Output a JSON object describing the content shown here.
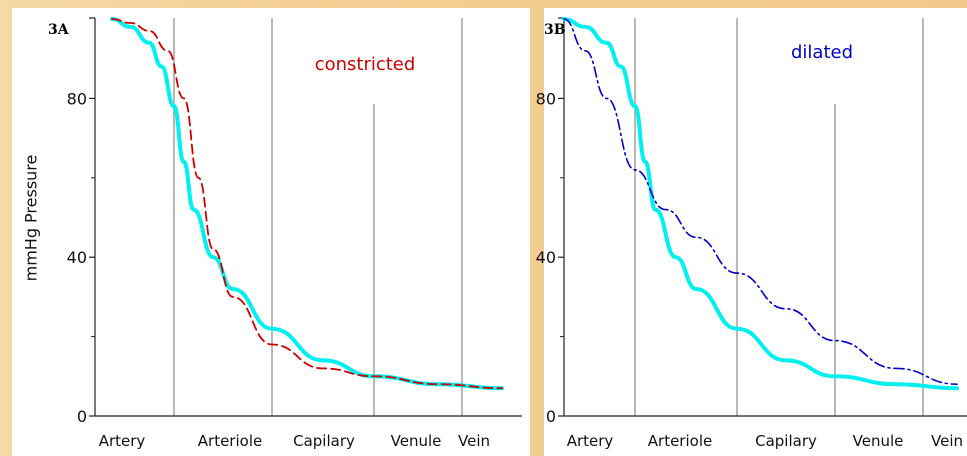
{
  "chart_data": [
    {
      "type": "line",
      "panel_label": "3A",
      "ylabel": "mmHg Pressure",
      "ylim": [
        0,
        100
      ],
      "yticks": [
        0,
        40,
        80
      ],
      "yticks_labels": [
        "0",
        "40",
        "80"
      ],
      "categories": [
        "Artery",
        "Arteriole",
        "Capilary",
        "Venule",
        "Vein"
      ],
      "annotation": {
        "text": "constricted",
        "color": "#cc0000"
      },
      "series": [
        {
          "role": "normal",
          "color": "#00f0f0",
          "style": "solid",
          "x": [
            0,
            0.3,
            0.6,
            0.8,
            1.0,
            1.1,
            1.2,
            1.4,
            1.6,
            2.0,
            2.5,
            3.0,
            3.5,
            4.0
          ],
          "y": [
            100,
            98,
            94,
            88,
            78,
            64,
            52,
            40,
            32,
            22,
            14,
            10,
            8,
            7
          ]
        },
        {
          "role": "constricted",
          "color": "#cc0000",
          "style": "dashed",
          "x": [
            0,
            0.3,
            0.6,
            0.9,
            1.1,
            1.25,
            1.4,
            1.6,
            2.0,
            2.5,
            3.0,
            3.5,
            4.0
          ],
          "y": [
            100,
            99,
            97,
            92,
            80,
            60,
            42,
            30,
            18,
            12,
            10,
            8,
            7
          ]
        }
      ]
    },
    {
      "type": "line",
      "panel_label": "3B",
      "ylim": [
        0,
        100
      ],
      "yticks": [
        0,
        40,
        80
      ],
      "yticks_labels": [
        "0",
        "40",
        "80"
      ],
      "categories": [
        "Artery",
        "Arteriole",
        "Capilary",
        "Venule",
        "Vein"
      ],
      "annotation": {
        "text": "dilated",
        "color": "#0000cc"
      },
      "series": [
        {
          "role": "normal",
          "color": "#00f0f0",
          "style": "solid",
          "x": [
            0,
            0.3,
            0.6,
            0.8,
            1.0,
            1.1,
            1.2,
            1.4,
            1.6,
            2.0,
            2.5,
            3.0,
            3.5,
            4.0
          ],
          "y": [
            100,
            98,
            94,
            88,
            78,
            64,
            52,
            40,
            32,
            22,
            14,
            10,
            8,
            7
          ]
        },
        {
          "role": "dilated",
          "color": "#0000cc",
          "style": "dashdot",
          "x": [
            0,
            0.3,
            0.6,
            1.0,
            1.3,
            1.6,
            2.0,
            2.5,
            3.0,
            3.5,
            4.0
          ],
          "y": [
            100,
            92,
            80,
            62,
            52,
            45,
            36,
            27,
            19,
            12,
            8
          ]
        }
      ]
    }
  ]
}
